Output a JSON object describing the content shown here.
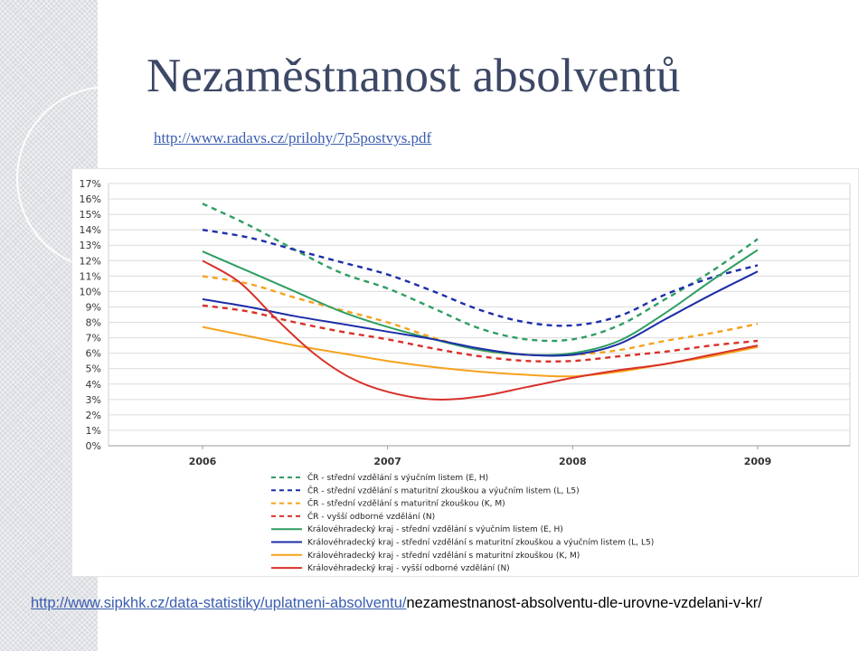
{
  "slide": {
    "title": "Nezaměstnanost absolventů",
    "source_link_top": "http://www.radavs.cz/prilohy/7p5postvys.pdf",
    "footer_link": "http://www.sipkhk.cz/data-statistiky/uplatneni-absolventu/",
    "footer_text": "nezamestnanost-absolventu-dle-urovne-vzdelani-v-kr/"
  },
  "chart_data": {
    "type": "line",
    "title": "",
    "xlabel": "",
    "ylabel": "",
    "grid": true,
    "legend_position": "bottom",
    "ylim": [
      0,
      17
    ],
    "y_ticks": [
      "0%",
      "1%",
      "2%",
      "3%",
      "4%",
      "5%",
      "6%",
      "7%",
      "8%",
      "9%",
      "10%",
      "11%",
      "12%",
      "13%",
      "14%",
      "15%",
      "16%",
      "17%"
    ],
    "x_categories": [
      "2006",
      "2007",
      "2008",
      "2009"
    ],
    "series": [
      {
        "name": "ČR - střední vzdělání s výučním listem (E, H)",
        "color": "#2e9e63",
        "dash": true,
        "points": [
          [
            2006.0,
            15.7
          ],
          [
            2006.25,
            14.3
          ],
          [
            2006.5,
            12.7
          ],
          [
            2006.75,
            11.2
          ],
          [
            2007.0,
            10.2
          ],
          [
            2007.25,
            8.9
          ],
          [
            2007.5,
            7.6
          ],
          [
            2007.75,
            6.9
          ],
          [
            2008.0,
            6.9
          ],
          [
            2008.25,
            7.8
          ],
          [
            2008.5,
            9.5
          ],
          [
            2008.75,
            11.3
          ],
          [
            2009.0,
            13.4
          ]
        ]
      },
      {
        "name": "ČR - střední vzdělání s maturitní zkouškou a výučním listem (L, L5)",
        "color": "#1c2ea8",
        "dash": true,
        "points": [
          [
            2006.0,
            14.0
          ],
          [
            2006.25,
            13.5
          ],
          [
            2006.5,
            12.7
          ],
          [
            2006.75,
            11.9
          ],
          [
            2007.0,
            11.1
          ],
          [
            2007.25,
            10.0
          ],
          [
            2007.5,
            8.8
          ],
          [
            2007.75,
            8.0
          ],
          [
            2008.0,
            7.8
          ],
          [
            2008.25,
            8.4
          ],
          [
            2008.5,
            9.8
          ],
          [
            2008.75,
            10.9
          ],
          [
            2009.0,
            11.7
          ]
        ]
      },
      {
        "name": "ČR - střední vzdělání s maturitní zkouškou (K, M)",
        "color": "#f5a21c",
        "dash": true,
        "points": [
          [
            2006.0,
            11.0
          ],
          [
            2006.25,
            10.5
          ],
          [
            2006.5,
            9.6
          ],
          [
            2006.75,
            8.8
          ],
          [
            2007.0,
            8.0
          ],
          [
            2007.25,
            7.0
          ],
          [
            2007.5,
            6.2
          ],
          [
            2007.75,
            5.9
          ],
          [
            2008.0,
            5.9
          ],
          [
            2008.25,
            6.2
          ],
          [
            2008.5,
            6.8
          ],
          [
            2008.75,
            7.3
          ],
          [
            2009.0,
            7.9
          ]
        ]
      },
      {
        "name": "ČR - vyšší odborné vzdělání (N)",
        "color": "#d8312a",
        "dash": true,
        "points": [
          [
            2006.0,
            9.1
          ],
          [
            2006.25,
            8.7
          ],
          [
            2006.5,
            8.0
          ],
          [
            2006.75,
            7.4
          ],
          [
            2007.0,
            6.9
          ],
          [
            2007.25,
            6.3
          ],
          [
            2007.5,
            5.8
          ],
          [
            2007.75,
            5.5
          ],
          [
            2008.0,
            5.5
          ],
          [
            2008.25,
            5.8
          ],
          [
            2008.5,
            6.1
          ],
          [
            2008.75,
            6.5
          ],
          [
            2009.0,
            6.8
          ]
        ]
      },
      {
        "name": "Královéhradecký kraj - střední vzdělání s výučním listem (E, H)",
        "color": "#2e9e63",
        "dash": false,
        "points": [
          [
            2006.0,
            12.6
          ],
          [
            2006.25,
            11.3
          ],
          [
            2006.5,
            10.0
          ],
          [
            2006.75,
            8.7
          ],
          [
            2007.0,
            7.7
          ],
          [
            2007.25,
            6.9
          ],
          [
            2007.5,
            6.2
          ],
          [
            2007.75,
            5.9
          ],
          [
            2008.0,
            6.0
          ],
          [
            2008.25,
            6.8
          ],
          [
            2008.5,
            8.6
          ],
          [
            2008.75,
            10.7
          ],
          [
            2009.0,
            12.7
          ]
        ]
      },
      {
        "name": "Královéhradecký kraj - střední vzdělání s maturitní zkouškou a výučním listem (L, L5)",
        "color": "#1c2ea8",
        "dash": false,
        "points": [
          [
            2006.0,
            9.5
          ],
          [
            2006.25,
            9.0
          ],
          [
            2006.5,
            8.4
          ],
          [
            2006.75,
            7.9
          ],
          [
            2007.0,
            7.4
          ],
          [
            2007.25,
            6.9
          ],
          [
            2007.5,
            6.3
          ],
          [
            2007.75,
            5.9
          ],
          [
            2008.0,
            5.9
          ],
          [
            2008.25,
            6.6
          ],
          [
            2008.5,
            8.2
          ],
          [
            2008.75,
            9.8
          ],
          [
            2009.0,
            11.3
          ]
        ]
      },
      {
        "name": "Královéhradecký kraj - střední vzdělání s maturitní zkouškou (K, M)",
        "color": "#f5a21c",
        "dash": false,
        "points": [
          [
            2006.0,
            7.7
          ],
          [
            2006.25,
            7.1
          ],
          [
            2006.5,
            6.5
          ],
          [
            2006.75,
            6.0
          ],
          [
            2007.0,
            5.5
          ],
          [
            2007.25,
            5.1
          ],
          [
            2007.5,
            4.8
          ],
          [
            2007.75,
            4.6
          ],
          [
            2008.0,
            4.5
          ],
          [
            2008.25,
            4.8
          ],
          [
            2008.5,
            5.3
          ],
          [
            2008.75,
            5.8
          ],
          [
            2009.0,
            6.4
          ]
        ]
      },
      {
        "name": "Královéhradecký kraj - vyšší odborné vzdělání (N)",
        "color": "#d8312a",
        "dash": false,
        "points": [
          [
            2006.0,
            12.0
          ],
          [
            2006.2,
            10.6
          ],
          [
            2006.4,
            8.2
          ],
          [
            2006.6,
            6.0
          ],
          [
            2006.8,
            4.4
          ],
          [
            2007.0,
            3.5
          ],
          [
            2007.25,
            3.0
          ],
          [
            2007.5,
            3.2
          ],
          [
            2007.75,
            3.8
          ],
          [
            2008.0,
            4.4
          ],
          [
            2008.25,
            4.9
          ],
          [
            2008.5,
            5.3
          ],
          [
            2008.75,
            5.9
          ],
          [
            2009.0,
            6.5
          ]
        ]
      }
    ]
  }
}
